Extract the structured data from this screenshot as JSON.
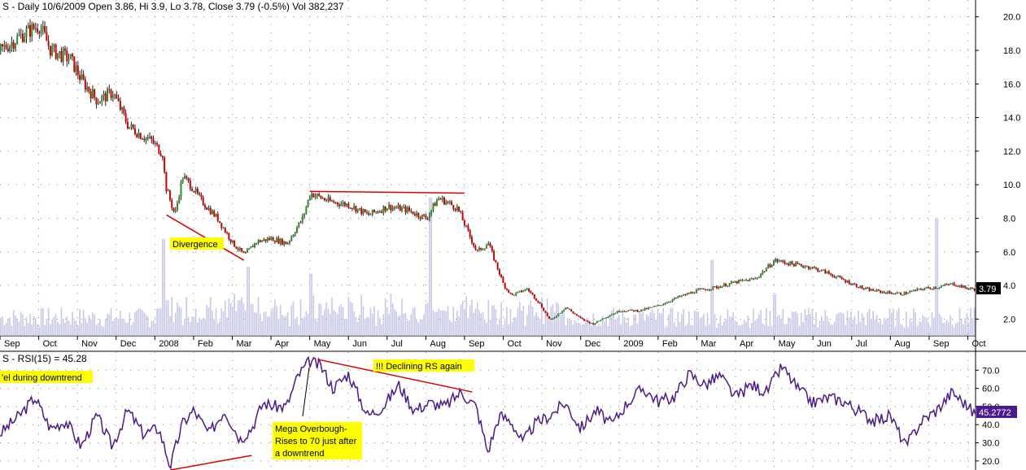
{
  "chart_data": [
    {
      "type": "candlestick",
      "title": "S - Daily 10/6/2009 Open 3.86, Hi 3.9, Lo 3.78, Close 3.79 (-0.5%) Vol 382,237",
      "ylim": [
        1.0,
        21.0
      ],
      "yticks": [
        "20.0",
        "18.0",
        "16.0",
        "14.0",
        "12.0",
        "10.0",
        "8.0",
        "6.0",
        "4.0",
        "2.0"
      ],
      "ytick_values": [
        20,
        18,
        16,
        14,
        12,
        10,
        8,
        6,
        4,
        2
      ],
      "last_value_label": "3.79",
      "grid": true,
      "up_color": "#2e8b2e",
      "down_color": "#cc0000",
      "volume_color": "#c8c8e8",
      "x_labels": [
        "Sep",
        "Oct",
        "Nov",
        "Dec",
        "2008",
        "Feb",
        "Mar",
        "Apr",
        "May",
        "Jun",
        "Jul",
        "Aug",
        "Sep",
        "Oct",
        "Nov",
        "Dec",
        "2009",
        "Feb",
        "Mar",
        "Apr",
        "May",
        "Jun",
        "Jul",
        "Aug",
        "Sep",
        "Oct"
      ],
      "x_label_months": [
        0,
        1,
        2,
        3,
        4,
        5,
        6,
        7,
        8,
        9,
        10,
        11,
        12,
        13,
        14,
        15,
        16,
        17,
        18,
        19,
        20,
        21,
        22,
        23,
        24,
        25
      ],
      "x_range_months": [
        0,
        25.2
      ],
      "price_path_months": [
        0,
        0.3,
        0.6,
        1.0,
        1.3,
        1.8,
        2.1,
        2.5,
        2.9,
        3.3,
        3.6,
        3.9,
        4.2,
        4.25,
        4.5,
        4.7,
        4.9,
        5.2,
        5.6,
        6.0,
        6.3,
        6.6,
        7.0,
        7.4,
        7.8,
        8.0,
        8.5,
        9.0,
        9.5,
        10.0,
        10.5,
        11.0,
        11.3,
        11.5,
        11.8,
        12.3,
        12.6,
        13.0,
        13.2,
        13.6,
        13.9,
        14.2,
        14.6,
        15.0,
        15.3,
        15.6,
        16.0,
        16.5,
        17.0,
        17.5,
        18.0,
        18.5,
        19.0,
        19.5,
        20.0,
        20.4,
        20.9,
        21.3,
        21.8,
        22.3,
        22.8,
        23.3,
        23.8,
        24.2,
        24.6,
        25.0,
        25.2
      ],
      "price_path_values": [
        18.0,
        18.5,
        19.0,
        19.5,
        18.0,
        17.5,
        16.2,
        15.0,
        15.5,
        13.5,
        13.0,
        12.6,
        11.8,
        10.0,
        8.2,
        10.5,
        10.0,
        9.0,
        8.0,
        6.5,
        5.8,
        6.6,
        6.8,
        6.5,
        8.0,
        9.5,
        9.0,
        8.8,
        8.2,
        8.7,
        8.5,
        8.0,
        9.2,
        9.0,
        8.6,
        6.0,
        6.5,
        4.0,
        3.4,
        3.8,
        3.0,
        1.9,
        2.7,
        2.0,
        1.7,
        2.1,
        2.5,
        2.5,
        2.8,
        3.3,
        3.7,
        3.9,
        4.2,
        4.4,
        5.5,
        5.3,
        5.1,
        4.8,
        4.3,
        3.8,
        3.6,
        3.5,
        3.8,
        3.9,
        4.1,
        3.8,
        3.79
      ],
      "volume_spike_months": [
        4.2,
        6.4,
        8.0,
        11.1,
        18.4,
        20.0,
        24.2
      ],
      "volume_spike_heights": [
        0.7,
        0.5,
        0.45,
        1.0,
        0.55,
        0.3,
        0.85
      ],
      "annotations": [
        {
          "text": "Divergence",
          "kind": "label"
        },
        {
          "kind": "line",
          "from": [
            4.3,
            8.2
          ],
          "to": [
            6.3,
            5.5
          ],
          "color": "#dd0000"
        },
        {
          "kind": "line",
          "from": [
            8.0,
            9.6
          ],
          "to": [
            12.0,
            9.5
          ],
          "color": "#dd0000"
        }
      ]
    },
    {
      "type": "line",
      "title": "S - RSI(15) = 45.28",
      "ylim": [
        15,
        80
      ],
      "yticks": [
        "70.0",
        "60.0",
        "50.0",
        "40.0",
        "30.0",
        "20.0"
      ],
      "ytick_values": [
        70,
        60,
        50,
        40,
        30,
        20
      ],
      "last_value_label": "45.2772",
      "line_color": "#4b1a8c",
      "grid": true,
      "rsi_path_months": [
        0,
        0.5,
        0.9,
        1.3,
        1.7,
        2.1,
        2.5,
        2.9,
        3.3,
        3.7,
        4.1,
        4.4,
        4.7,
        5.0,
        5.4,
        5.8,
        6.2,
        6.5,
        6.8,
        7.1,
        7.4,
        7.7,
        8.0,
        8.3,
        8.6,
        9.0,
        9.5,
        9.9,
        10.3,
        10.7,
        11.1,
        11.5,
        11.9,
        12.3,
        12.6,
        12.9,
        13.2,
        13.5,
        13.8,
        14.2,
        14.6,
        15.0,
        15.4,
        15.8,
        16.2,
        16.6,
        17.0,
        17.4,
        17.8,
        18.2,
        18.6,
        19.0,
        19.4,
        19.8,
        20.2,
        20.6,
        21.0,
        21.4,
        21.8,
        22.2,
        22.6,
        23.0,
        23.4,
        23.8,
        24.2,
        24.6,
        25.0,
        25.2
      ],
      "rsi_path_values": [
        35,
        45,
        55,
        38,
        42,
        28,
        45,
        28,
        48,
        35,
        38,
        17,
        40,
        48,
        35,
        48,
        32,
        38,
        52,
        50,
        50,
        67,
        75,
        72,
        60,
        68,
        45,
        50,
        62,
        48,
        52,
        50,
        58,
        50,
        25,
        45,
        42,
        30,
        40,
        45,
        52,
        38,
        48,
        40,
        52,
        60,
        53,
        55,
        68,
        62,
        67,
        55,
        62,
        58,
        72,
        60,
        52,
        55,
        53,
        47,
        42,
        45,
        28,
        42,
        48,
        58,
        50,
        45.28
      ],
      "annotations": [
        {
          "text": "'el during downtrend",
          "kind": "label"
        },
        {
          "text": "!!! Declining RS again",
          "kind": "label"
        },
        {
          "text_lines": [
            "Mega Overbough-",
            "Rises to 70 just after",
            "a downtrend"
          ],
          "kind": "label"
        },
        {
          "kind": "line",
          "from": [
            8.2,
            76
          ],
          "to": [
            12.2,
            58
          ],
          "color": "#dd0000"
        },
        {
          "kind": "line",
          "from": [
            4.4,
            15
          ],
          "to": [
            6.5,
            23
          ],
          "color": "#dd0000"
        }
      ]
    }
  ]
}
